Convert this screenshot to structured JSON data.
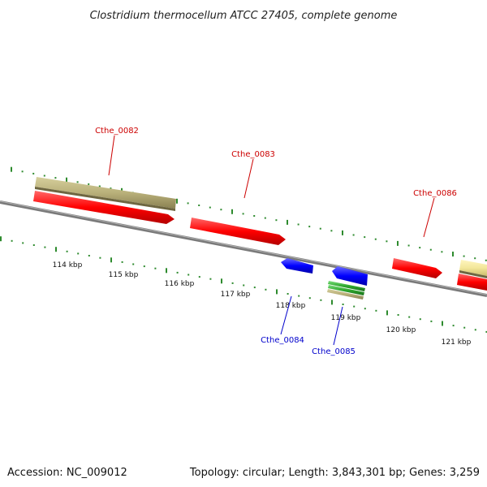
{
  "title": "Clostridium thermocellum ATCC 27405, complete genome",
  "footer": {
    "accession": "Accession: NC_009012",
    "summary": "Topology: circular; Length: 3,843,301 bp; Genes: 3,259"
  },
  "colors": {
    "backbone": "#808080",
    "ticks": "#2e8b2e",
    "forward_cds": "#ff0000",
    "reverse_cds": "#0000ff",
    "rna": "#b9b07a",
    "rna_light": "#f3e79a",
    "other_feature": "#2ea82e",
    "label_forward": "#cc0000",
    "label_reverse": "#0000cc"
  },
  "scale": {
    "unit": "kbp",
    "labels": [
      "114 kbp",
      "115 kbp",
      "116 kbp",
      "117 kbp",
      "118 kbp",
      "119 kbp",
      "120 kbp",
      "121 kbp"
    ]
  },
  "gene_labels": [
    {
      "id": "Cthe_0082",
      "text": "Cthe_0082",
      "strand": "forward"
    },
    {
      "id": "Cthe_0083",
      "text": "Cthe_0083",
      "strand": "forward"
    },
    {
      "id": "Cthe_0086",
      "text": "Cthe_0086",
      "strand": "forward"
    },
    {
      "id": "Cthe_0084",
      "text": "Cthe_0084",
      "strand": "reverse"
    },
    {
      "id": "Cthe_0085",
      "text": "Cthe_0085",
      "strand": "reverse"
    }
  ]
}
